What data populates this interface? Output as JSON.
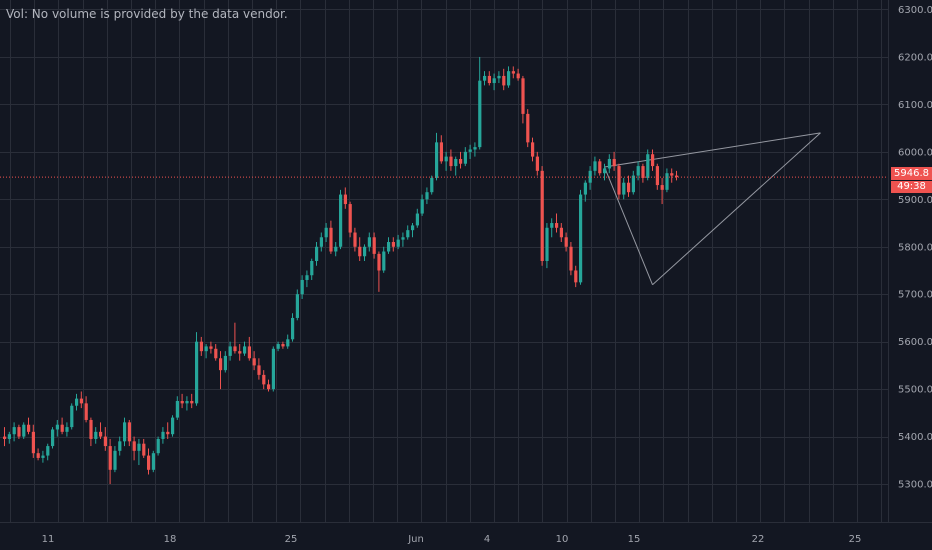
{
  "volume_note": "Vol: No volume is provided by the data vendor.",
  "last_price_label": "5946.8",
  "countdown_label": "49:38",
  "colors": {
    "background": "#131722",
    "up": "#26a69a",
    "down": "#ef5350",
    "grid": "#2a2e39",
    "price_line": "#ef5350",
    "drawing": "#9598a1",
    "text": "#a3a6af"
  },
  "chart_data": {
    "type": "candlestick",
    "title": "",
    "xlabel": "",
    "ylabel": "",
    "ylim": [
      5220,
      6320
    ],
    "grid": true,
    "y_ticks": [
      "6300.0",
      "6200.0",
      "6100.0",
      "6000.0",
      "5900.0",
      "5800.0",
      "5700.0",
      "5600.0",
      "5500.0",
      "5400.0",
      "5300.0"
    ],
    "x_tick_labels": [
      "11",
      "18",
      "25",
      "Jun",
      "4",
      "10",
      "15",
      "22",
      "25"
    ],
    "last_price": 5946.8,
    "candles": [
      [
        5400,
        5420,
        5380,
        5395
      ],
      [
        5395,
        5410,
        5385,
        5405
      ],
      [
        5405,
        5430,
        5390,
        5420
      ],
      [
        5420,
        5425,
        5395,
        5400
      ],
      [
        5400,
        5430,
        5395,
        5425
      ],
      [
        5425,
        5440,
        5405,
        5410
      ],
      [
        5410,
        5425,
        5355,
        5365
      ],
      [
        5365,
        5375,
        5350,
        5355
      ],
      [
        5355,
        5370,
        5345,
        5360
      ],
      [
        5360,
        5385,
        5350,
        5380
      ],
      [
        5380,
        5420,
        5375,
        5415
      ],
      [
        5415,
        5435,
        5400,
        5425
      ],
      [
        5425,
        5440,
        5405,
        5410
      ],
      [
        5410,
        5430,
        5400,
        5420
      ],
      [
        5420,
        5470,
        5415,
        5465
      ],
      [
        5465,
        5490,
        5455,
        5480
      ],
      [
        5480,
        5495,
        5460,
        5470
      ],
      [
        5470,
        5485,
        5430,
        5435
      ],
      [
        5435,
        5440,
        5380,
        5395
      ],
      [
        5395,
        5420,
        5385,
        5410
      ],
      [
        5410,
        5430,
        5395,
        5400
      ],
      [
        5400,
        5420,
        5370,
        5380
      ],
      [
        5380,
        5395,
        5300,
        5330
      ],
      [
        5330,
        5380,
        5325,
        5370
      ],
      [
        5370,
        5400,
        5360,
        5390
      ],
      [
        5390,
        5440,
        5380,
        5430
      ],
      [
        5430,
        5435,
        5380,
        5390
      ],
      [
        5390,
        5400,
        5350,
        5370
      ],
      [
        5370,
        5395,
        5340,
        5385
      ],
      [
        5385,
        5395,
        5355,
        5360
      ],
      [
        5360,
        5375,
        5320,
        5330
      ],
      [
        5330,
        5370,
        5325,
        5365
      ],
      [
        5365,
        5400,
        5360,
        5395
      ],
      [
        5395,
        5420,
        5385,
        5410
      ],
      [
        5410,
        5430,
        5395,
        5405
      ],
      [
        5405,
        5445,
        5400,
        5440
      ],
      [
        5440,
        5485,
        5435,
        5475
      ],
      [
        5475,
        5490,
        5460,
        5470
      ],
      [
        5470,
        5485,
        5455,
        5475
      ],
      [
        5475,
        5490,
        5460,
        5470
      ],
      [
        5470,
        5620,
        5465,
        5600
      ],
      [
        5600,
        5610,
        5570,
        5580
      ],
      [
        5580,
        5595,
        5565,
        5590
      ],
      [
        5590,
        5600,
        5575,
        5585
      ],
      [
        5585,
        5595,
        5560,
        5565
      ],
      [
        5565,
        5580,
        5500,
        5540
      ],
      [
        5540,
        5580,
        5535,
        5570
      ],
      [
        5570,
        5600,
        5560,
        5590
      ],
      [
        5590,
        5640,
        5575,
        5580
      ],
      [
        5580,
        5595,
        5560,
        5575
      ],
      [
        5575,
        5600,
        5570,
        5590
      ],
      [
        5590,
        5610,
        5560,
        5565
      ],
      [
        5565,
        5580,
        5540,
        5550
      ],
      [
        5550,
        5565,
        5520,
        5530
      ],
      [
        5530,
        5540,
        5500,
        5510
      ],
      [
        5510,
        5520,
        5495,
        5500
      ],
      [
        5500,
        5590,
        5495,
        5585
      ],
      [
        5585,
        5600,
        5580,
        5595
      ],
      [
        5595,
        5600,
        5585,
        5590
      ],
      [
        5590,
        5615,
        5585,
        5605
      ],
      [
        5605,
        5660,
        5600,
        5650
      ],
      [
        5650,
        5710,
        5645,
        5700
      ],
      [
        5700,
        5740,
        5690,
        5730
      ],
      [
        5730,
        5750,
        5715,
        5740
      ],
      [
        5740,
        5775,
        5730,
        5770
      ],
      [
        5770,
        5810,
        5760,
        5800
      ],
      [
        5800,
        5830,
        5790,
        5820
      ],
      [
        5820,
        5850,
        5810,
        5840
      ],
      [
        5840,
        5855,
        5785,
        5790
      ],
      [
        5790,
        5810,
        5780,
        5800
      ],
      [
        5800,
        5920,
        5795,
        5910
      ],
      [
        5910,
        5925,
        5880,
        5890
      ],
      [
        5890,
        5895,
        5820,
        5830
      ],
      [
        5830,
        5840,
        5790,
        5800
      ],
      [
        5800,
        5820,
        5770,
        5780
      ],
      [
        5780,
        5805,
        5770,
        5800
      ],
      [
        5800,
        5830,
        5790,
        5820
      ],
      [
        5820,
        5830,
        5775,
        5785
      ],
      [
        5785,
        5790,
        5705,
        5750
      ],
      [
        5750,
        5800,
        5745,
        5790
      ],
      [
        5790,
        5820,
        5785,
        5810
      ],
      [
        5810,
        5820,
        5790,
        5800
      ],
      [
        5800,
        5825,
        5795,
        5815
      ],
      [
        5815,
        5830,
        5800,
        5820
      ],
      [
        5820,
        5845,
        5815,
        5835
      ],
      [
        5835,
        5850,
        5820,
        5845
      ],
      [
        5845,
        5880,
        5840,
        5870
      ],
      [
        5870,
        5910,
        5865,
        5900
      ],
      [
        5900,
        5925,
        5890,
        5915
      ],
      [
        5915,
        5950,
        5910,
        5945
      ],
      [
        5945,
        6040,
        5940,
        6020
      ],
      [
        6020,
        6035,
        5975,
        5980
      ],
      [
        5980,
        6000,
        5960,
        5990
      ],
      [
        5990,
        6005,
        5960,
        5970
      ],
      [
        5970,
        5990,
        5950,
        5985
      ],
      [
        5985,
        6000,
        5965,
        5975
      ],
      [
        5975,
        6010,
        5970,
        6000
      ],
      [
        6000,
        6015,
        5985,
        6005
      ],
      [
        6005,
        6020,
        5990,
        6010
      ],
      [
        6010,
        6200,
        6005,
        6150
      ],
      [
        6150,
        6170,
        6140,
        6160
      ],
      [
        6160,
        6170,
        6140,
        6145
      ],
      [
        6145,
        6165,
        6130,
        6155
      ],
      [
        6155,
        6170,
        6145,
        6160
      ],
      [
        6160,
        6175,
        6130,
        6140
      ],
      [
        6140,
        6180,
        6135,
        6170
      ],
      [
        6170,
        6180,
        6155,
        6165
      ],
      [
        6165,
        6175,
        6150,
        6155
      ],
      [
        6155,
        6160,
        6060,
        6080
      ],
      [
        6080,
        6090,
        6010,
        6020
      ],
      [
        6020,
        6030,
        5980,
        5990
      ],
      [
        5990,
        6000,
        5950,
        5960
      ],
      [
        5960,
        5970,
        5760,
        5770
      ],
      [
        5770,
        5850,
        5755,
        5840
      ],
      [
        5840,
        5860,
        5820,
        5850
      ],
      [
        5850,
        5870,
        5830,
        5840
      ],
      [
        5840,
        5850,
        5810,
        5820
      ],
      [
        5820,
        5830,
        5790,
        5800
      ],
      [
        5800,
        5810,
        5740,
        5750
      ],
      [
        5750,
        5760,
        5715,
        5725
      ],
      [
        5725,
        5920,
        5720,
        5910
      ],
      [
        5910,
        5940,
        5895,
        5935
      ],
      [
        5935,
        5970,
        5920,
        5960
      ],
      [
        5960,
        5990,
        5950,
        5980
      ],
      [
        5980,
        5985,
        5950,
        5955
      ],
      [
        5955,
        5975,
        5940,
        5965
      ],
      [
        5965,
        5995,
        5955,
        5985
      ],
      [
        5985,
        6000,
        5960,
        5970
      ],
      [
        5970,
        5975,
        5900,
        5910
      ],
      [
        5910,
        5945,
        5900,
        5935
      ],
      [
        5935,
        5950,
        5905,
        5915
      ],
      [
        5915,
        5960,
        5910,
        5950
      ],
      [
        5950,
        5980,
        5940,
        5970
      ],
      [
        5970,
        5975,
        5935,
        5945
      ],
      [
        5945,
        6005,
        5940,
        5995
      ],
      [
        5995,
        6005,
        5960,
        5970
      ],
      [
        5970,
        5975,
        5920,
        5930
      ],
      [
        5930,
        5945,
        5890,
        5920
      ],
      [
        5920,
        5965,
        5915,
        5955
      ],
      [
        5955,
        5965,
        5935,
        5950
      ],
      [
        5950,
        5960,
        5940,
        5946.8
      ]
    ],
    "drawings": [
      {
        "type": "trendline",
        "from": {
          "bar": 125,
          "price": 5968
        },
        "to": {
          "bar": 170,
          "price": 6040
        }
      },
      {
        "type": "trendline",
        "from": {
          "bar": 125,
          "price": 5968
        },
        "to": {
          "bar": 135,
          "price": 5720
        }
      },
      {
        "type": "trendline",
        "from": {
          "bar": 135,
          "price": 5720
        },
        "to": {
          "bar": 170,
          "price": 6040
        }
      }
    ]
  }
}
